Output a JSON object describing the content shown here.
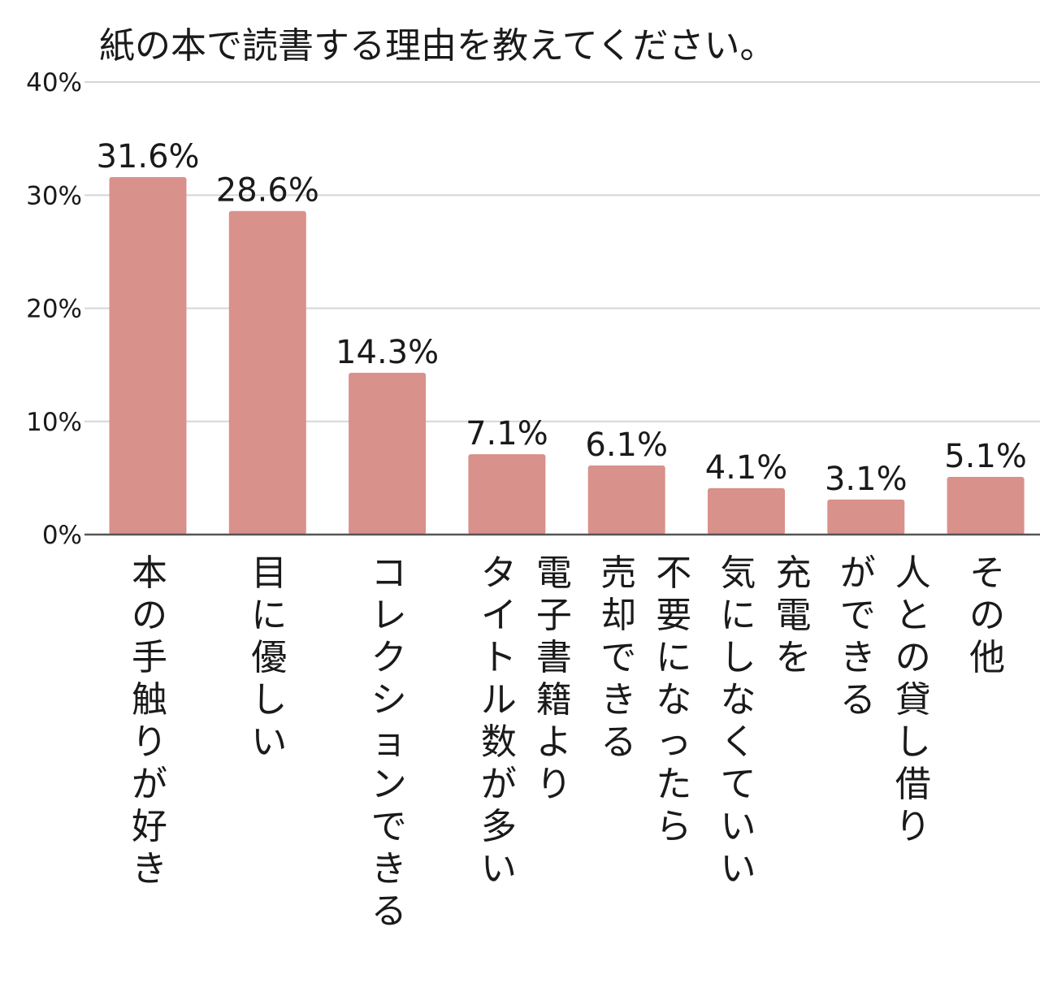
{
  "chart_data": {
    "type": "bar",
    "title": "紙の本で読書する理由を教えてください。",
    "categories": [
      [
        "本の手触りが好き"
      ],
      [
        "目に優しい"
      ],
      [
        "コレクションできる"
      ],
      [
        "タイトル数が多い",
        "電子書籍より"
      ],
      [
        "売却できる",
        "不要になったら"
      ],
      [
        "気にしなくていい",
        "充電を"
      ],
      [
        "ができる",
        "人との貸し借り"
      ],
      [
        "その他"
      ]
    ],
    "values": [
      31.6,
      28.6,
      14.3,
      7.1,
      6.1,
      4.1,
      3.1,
      5.1
    ],
    "value_labels": [
      "31.6%",
      "28.6%",
      "14.3%",
      "7.1%",
      "6.1%",
      "4.1%",
      "3.1%",
      "5.1%"
    ],
    "ylim": [
      0,
      40
    ],
    "yticks": [
      0,
      10,
      20,
      30,
      40
    ],
    "ytick_labels": [
      "0%",
      "10%",
      "20%",
      "30%",
      "40%"
    ],
    "grid": true,
    "legend": "none",
    "bar_color": "#d9918b",
    "xlabel": "",
    "ylabel": ""
  }
}
